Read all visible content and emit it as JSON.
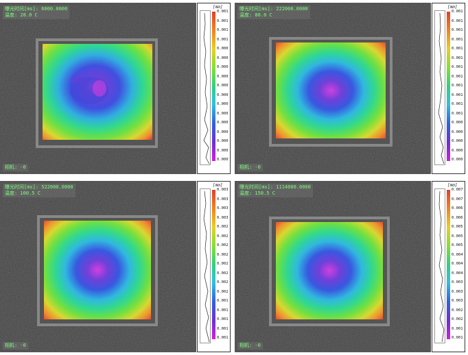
{
  "colors": {
    "scale_top": "#e0402a",
    "scale_bottom": "#d020e0",
    "overlay_text": "#7cff7c",
    "background": "#3a3a3a"
  },
  "panels": [
    {
      "time_label": "曝光时间[ms]: 6000.0000",
      "temp_label": "温度: 28.0 C",
      "camera_label": "相机: -0",
      "unit": "[mm]",
      "scale_ticks": [
        "0.001",
        "0.001",
        "0.001",
        "0.001",
        "0.000",
        "0.000",
        "0.000",
        "0.000",
        "0.000",
        "0.000",
        "0.000",
        "0.000",
        "0.000",
        "0.000",
        "0.000",
        "0.000",
        "0.000"
      ]
    },
    {
      "time_label": "曝光时间[ms]: 222000.0000",
      "temp_label": "温度: 80.0 C",
      "camera_label": "相机: -0",
      "unit": "[mm]",
      "scale_ticks": [
        "0.001",
        "0.001",
        "0.001",
        "0.001",
        "0.001",
        "0.001",
        "0.001",
        "0.001",
        "0.001",
        "0.001",
        "0.001",
        "0.001",
        "0.000",
        "0.000",
        "0.000",
        "0.000",
        "0.000"
      ]
    },
    {
      "time_label": "曝光时间[ms]: 522000.0000",
      "temp_label": "温度: 100.5 C",
      "camera_label": "相机: -0",
      "unit": "[mm]",
      "scale_ticks": [
        "0.003",
        "0.003",
        "0.003",
        "0.003",
        "0.002",
        "0.002",
        "0.002",
        "0.002",
        "0.002",
        "0.002",
        "0.002",
        "0.002",
        "0.001",
        "0.001",
        "0.001",
        "0.001",
        "0.001"
      ]
    },
    {
      "time_label": "曝光时间[ms]: 1114000.0000",
      "temp_label": "温度: 150.5 C",
      "camera_label": "相机: -0",
      "unit": "[mm]",
      "scale_ticks": [
        "0.007",
        "0.007",
        "0.006",
        "0.006",
        "0.005",
        "0.005",
        "0.005",
        "0.004",
        "0.004",
        "0.004",
        "0.003",
        "0.003",
        "0.003",
        "0.002",
        "0.002",
        "0.001",
        "0.001"
      ]
    }
  ]
}
